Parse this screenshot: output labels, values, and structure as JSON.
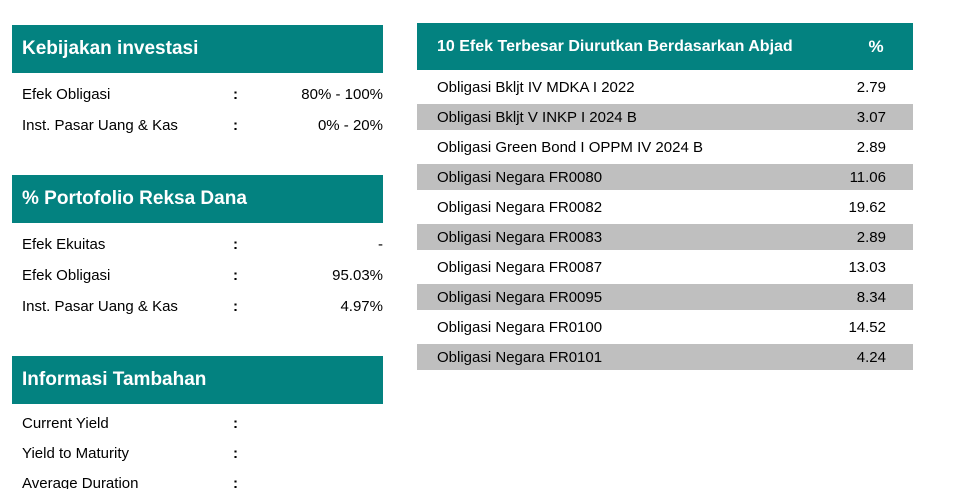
{
  "colors": {
    "header_bg": "#038280",
    "header_text": "#ffffff",
    "alt_row_bg": "#BFBFBF",
    "body_text": "#000000"
  },
  "left_panel": {
    "sections": [
      {
        "title": "Kebijakan investasi",
        "rows": [
          {
            "label": "Efek Obligasi",
            "sep": ":",
            "value": "80% - 100%"
          },
          {
            "label": "Inst. Pasar Uang & Kas",
            "sep": ":",
            "value": "0% - 20%"
          }
        ]
      },
      {
        "title": "% Portofolio Reksa Dana",
        "rows": [
          {
            "label": "Efek Ekuitas",
            "sep": ":",
            "value": "-"
          },
          {
            "label": "Efek Obligasi",
            "sep": ":",
            "value": "95.03%"
          },
          {
            "label": "Inst. Pasar Uang & Kas",
            "sep": ":",
            "value": "4.97%"
          }
        ]
      },
      {
        "title": "Informasi Tambahan",
        "rows": [
          {
            "label": "Current Yield",
            "sep": ":",
            "value": ""
          },
          {
            "label": "Yield to Maturity",
            "sep": ":",
            "value": ""
          },
          {
            "label": "Average Duration",
            "sep": ":",
            "value": ""
          }
        ]
      }
    ]
  },
  "holdings_table": {
    "title": "10 Efek Terbesar Diurutkan Berdasarkan Abjad",
    "percent_header": "%",
    "rows": [
      {
        "name": "Obligasi Bkljt IV MDKA I 2022",
        "value": "2.79"
      },
      {
        "name": "Obligasi Bkljt V INKP I 2024 B",
        "value": "3.07"
      },
      {
        "name": "Obligasi Green Bond I OPPM IV 2024 B",
        "value": "2.89"
      },
      {
        "name": "Obligasi Negara FR0080",
        "value": "11.06"
      },
      {
        "name": "Obligasi Negara FR0082",
        "value": "19.62"
      },
      {
        "name": "Obligasi Negara FR0083",
        "value": "2.89"
      },
      {
        "name": "Obligasi Negara FR0087",
        "value": "13.03"
      },
      {
        "name": "Obligasi Negara FR0095",
        "value": "8.34"
      },
      {
        "name": "Obligasi Negara FR0100",
        "value": "14.52"
      },
      {
        "name": "Obligasi Negara FR0101",
        "value": "4.24"
      }
    ]
  }
}
